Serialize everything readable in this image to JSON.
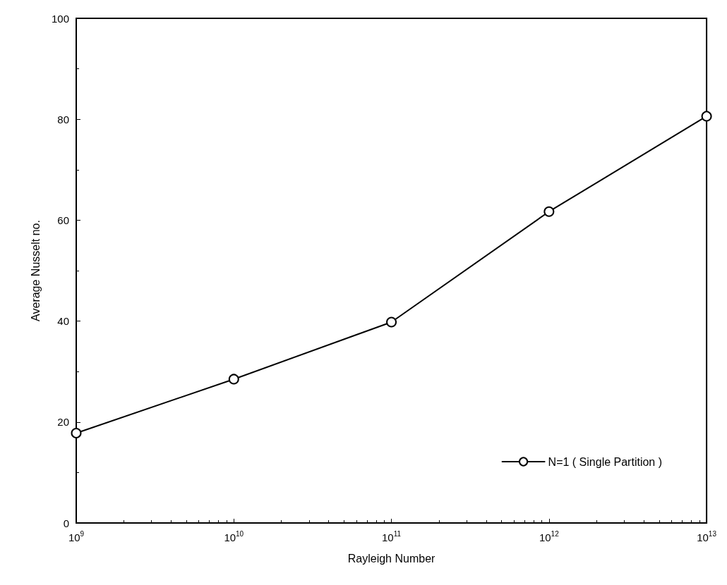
{
  "chart_data": {
    "type": "line",
    "xlabel": "Rayleigh Number",
    "ylabel": "Average Nusselt no.",
    "log": "x",
    "x": [
      1000000000.0,
      10000000000.0,
      100000000000.0,
      1000000000000.0,
      10000000000000.0
    ],
    "series": [
      {
        "name": "N=1 ( Single Partition )",
        "color": "#000000",
        "values": [
          17.8,
          28.5,
          39.8,
          61.7,
          80.6
        ]
      }
    ],
    "xlim": [
      1000000000.0,
      10000000000000.0
    ],
    "xticks": [
      {
        "value": 1000000000.0,
        "label": "10$^{9}$"
      },
      {
        "value": 10000000000.0,
        "label": "10$^{10}$"
      },
      {
        "value": 100000000000.0,
        "label": "10$^{11}$"
      },
      {
        "value": 1000000000000.0,
        "label": "10$^{12}$"
      },
      {
        "value": 10000000000000.0,
        "label": "10$^{13}$"
      }
    ],
    "ylim": [
      0,
      100
    ],
    "yticks": [
      0,
      20,
      40,
      60,
      80,
      100
    ],
    "grid": false,
    "legend": "bottom right",
    "marker": "circle",
    "line_style": "solid"
  }
}
